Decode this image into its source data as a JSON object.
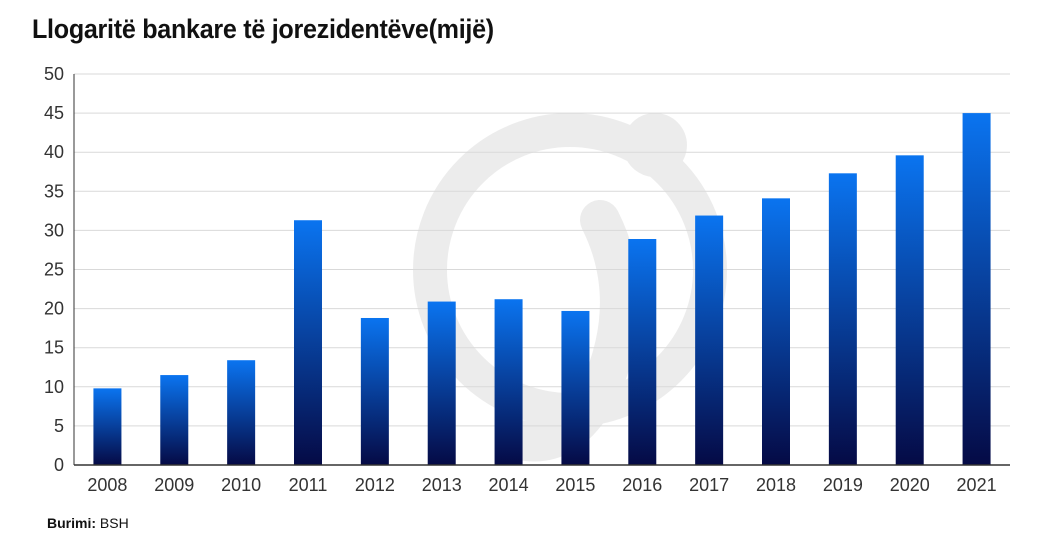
{
  "chart_data": {
    "type": "bar",
    "title": "Llogaritë bankare të jorezidentëve(mijë)",
    "xlabel": "",
    "ylabel": "",
    "categories": [
      "2008",
      "2009",
      "2010",
      "2011",
      "2012",
      "2013",
      "2014",
      "2015",
      "2016",
      "2017",
      "2018",
      "2019",
      "2020",
      "2021"
    ],
    "values": [
      9.8,
      11.5,
      13.4,
      31.3,
      18.8,
      20.9,
      21.2,
      19.7,
      28.9,
      31.9,
      34.1,
      37.3,
      39.6,
      45.0
    ],
    "ylim": [
      0,
      50
    ],
    "yticks": [
      "0",
      "5",
      "10",
      "15",
      "20",
      "25",
      "30",
      "35",
      "40",
      "45",
      "50"
    ],
    "grid": true,
    "legend": "none",
    "colors": {
      "bar_top": "#0a74f0",
      "bar_bottom": "#050a45",
      "grid": "#d9d9d9",
      "axis": "#333333"
    }
  },
  "source": {
    "label": "Burimi:",
    "value": "BSH"
  }
}
